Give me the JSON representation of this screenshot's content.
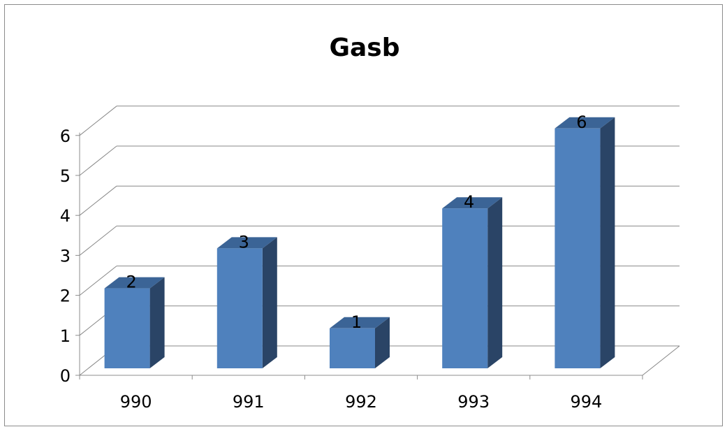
{
  "chart_data": {
    "type": "bar",
    "title": "Gasb",
    "categories": [
      "990",
      "991",
      "992",
      "993",
      "994"
    ],
    "values": [
      2,
      3,
      1,
      4,
      6
    ],
    "data_labels": [
      "2",
      "3",
      "1",
      "4",
      "6"
    ],
    "ylim": [
      0,
      6
    ],
    "yticks": [
      "0",
      "1",
      "2",
      "3",
      "4",
      "5",
      "6"
    ],
    "grid": true,
    "legend": "none",
    "style": "3d-column"
  },
  "colors": {
    "bar_front": "#4f81bd",
    "bar_side": "#2a4466",
    "bar_top": "#3b6496",
    "gridline": "#888888",
    "frame": "#8c8c8c",
    "text": "#000000"
  }
}
